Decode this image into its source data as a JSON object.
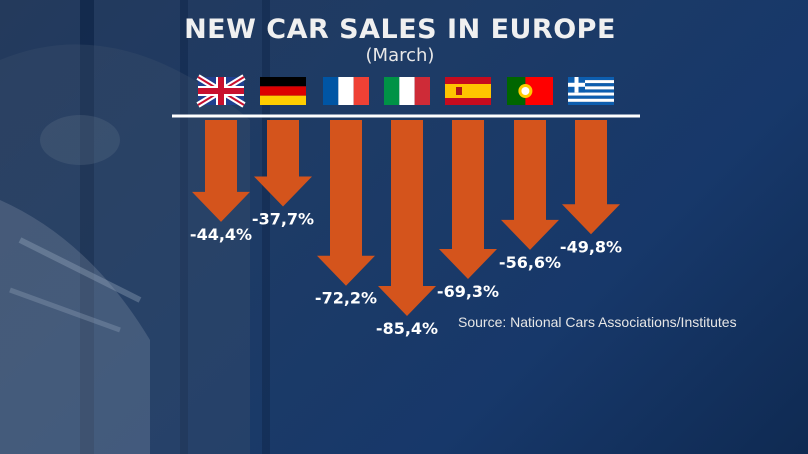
{
  "title": "NEW CAR SALES IN EUROPE",
  "subtitle": "(March)",
  "source": "Source: National Cars Associations/Institutes",
  "colors": {
    "arrow": "#d4541c",
    "baseline": "#ffffff"
  },
  "chart_data": {
    "type": "bar",
    "orientation": "downward-arrows",
    "categories": [
      "United Kingdom",
      "Germany",
      "France",
      "Italy",
      "Spain",
      "Portugal",
      "Greece"
    ],
    "flag_icons": [
      "uk-flag-icon",
      "germany-flag-icon",
      "france-flag-icon",
      "italy-flag-icon",
      "spain-flag-icon",
      "portugal-flag-icon",
      "greece-flag-icon"
    ],
    "values": [
      -44.4,
      -37.7,
      -72.2,
      -85.4,
      -69.3,
      -56.6,
      -49.8
    ],
    "value_labels": [
      "-44,4%",
      "-37,7%",
      "-72,2%",
      "-85,4%",
      "-69,3%",
      "-56,6%",
      "-49,8%"
    ],
    "ylim": [
      -100,
      0
    ]
  }
}
